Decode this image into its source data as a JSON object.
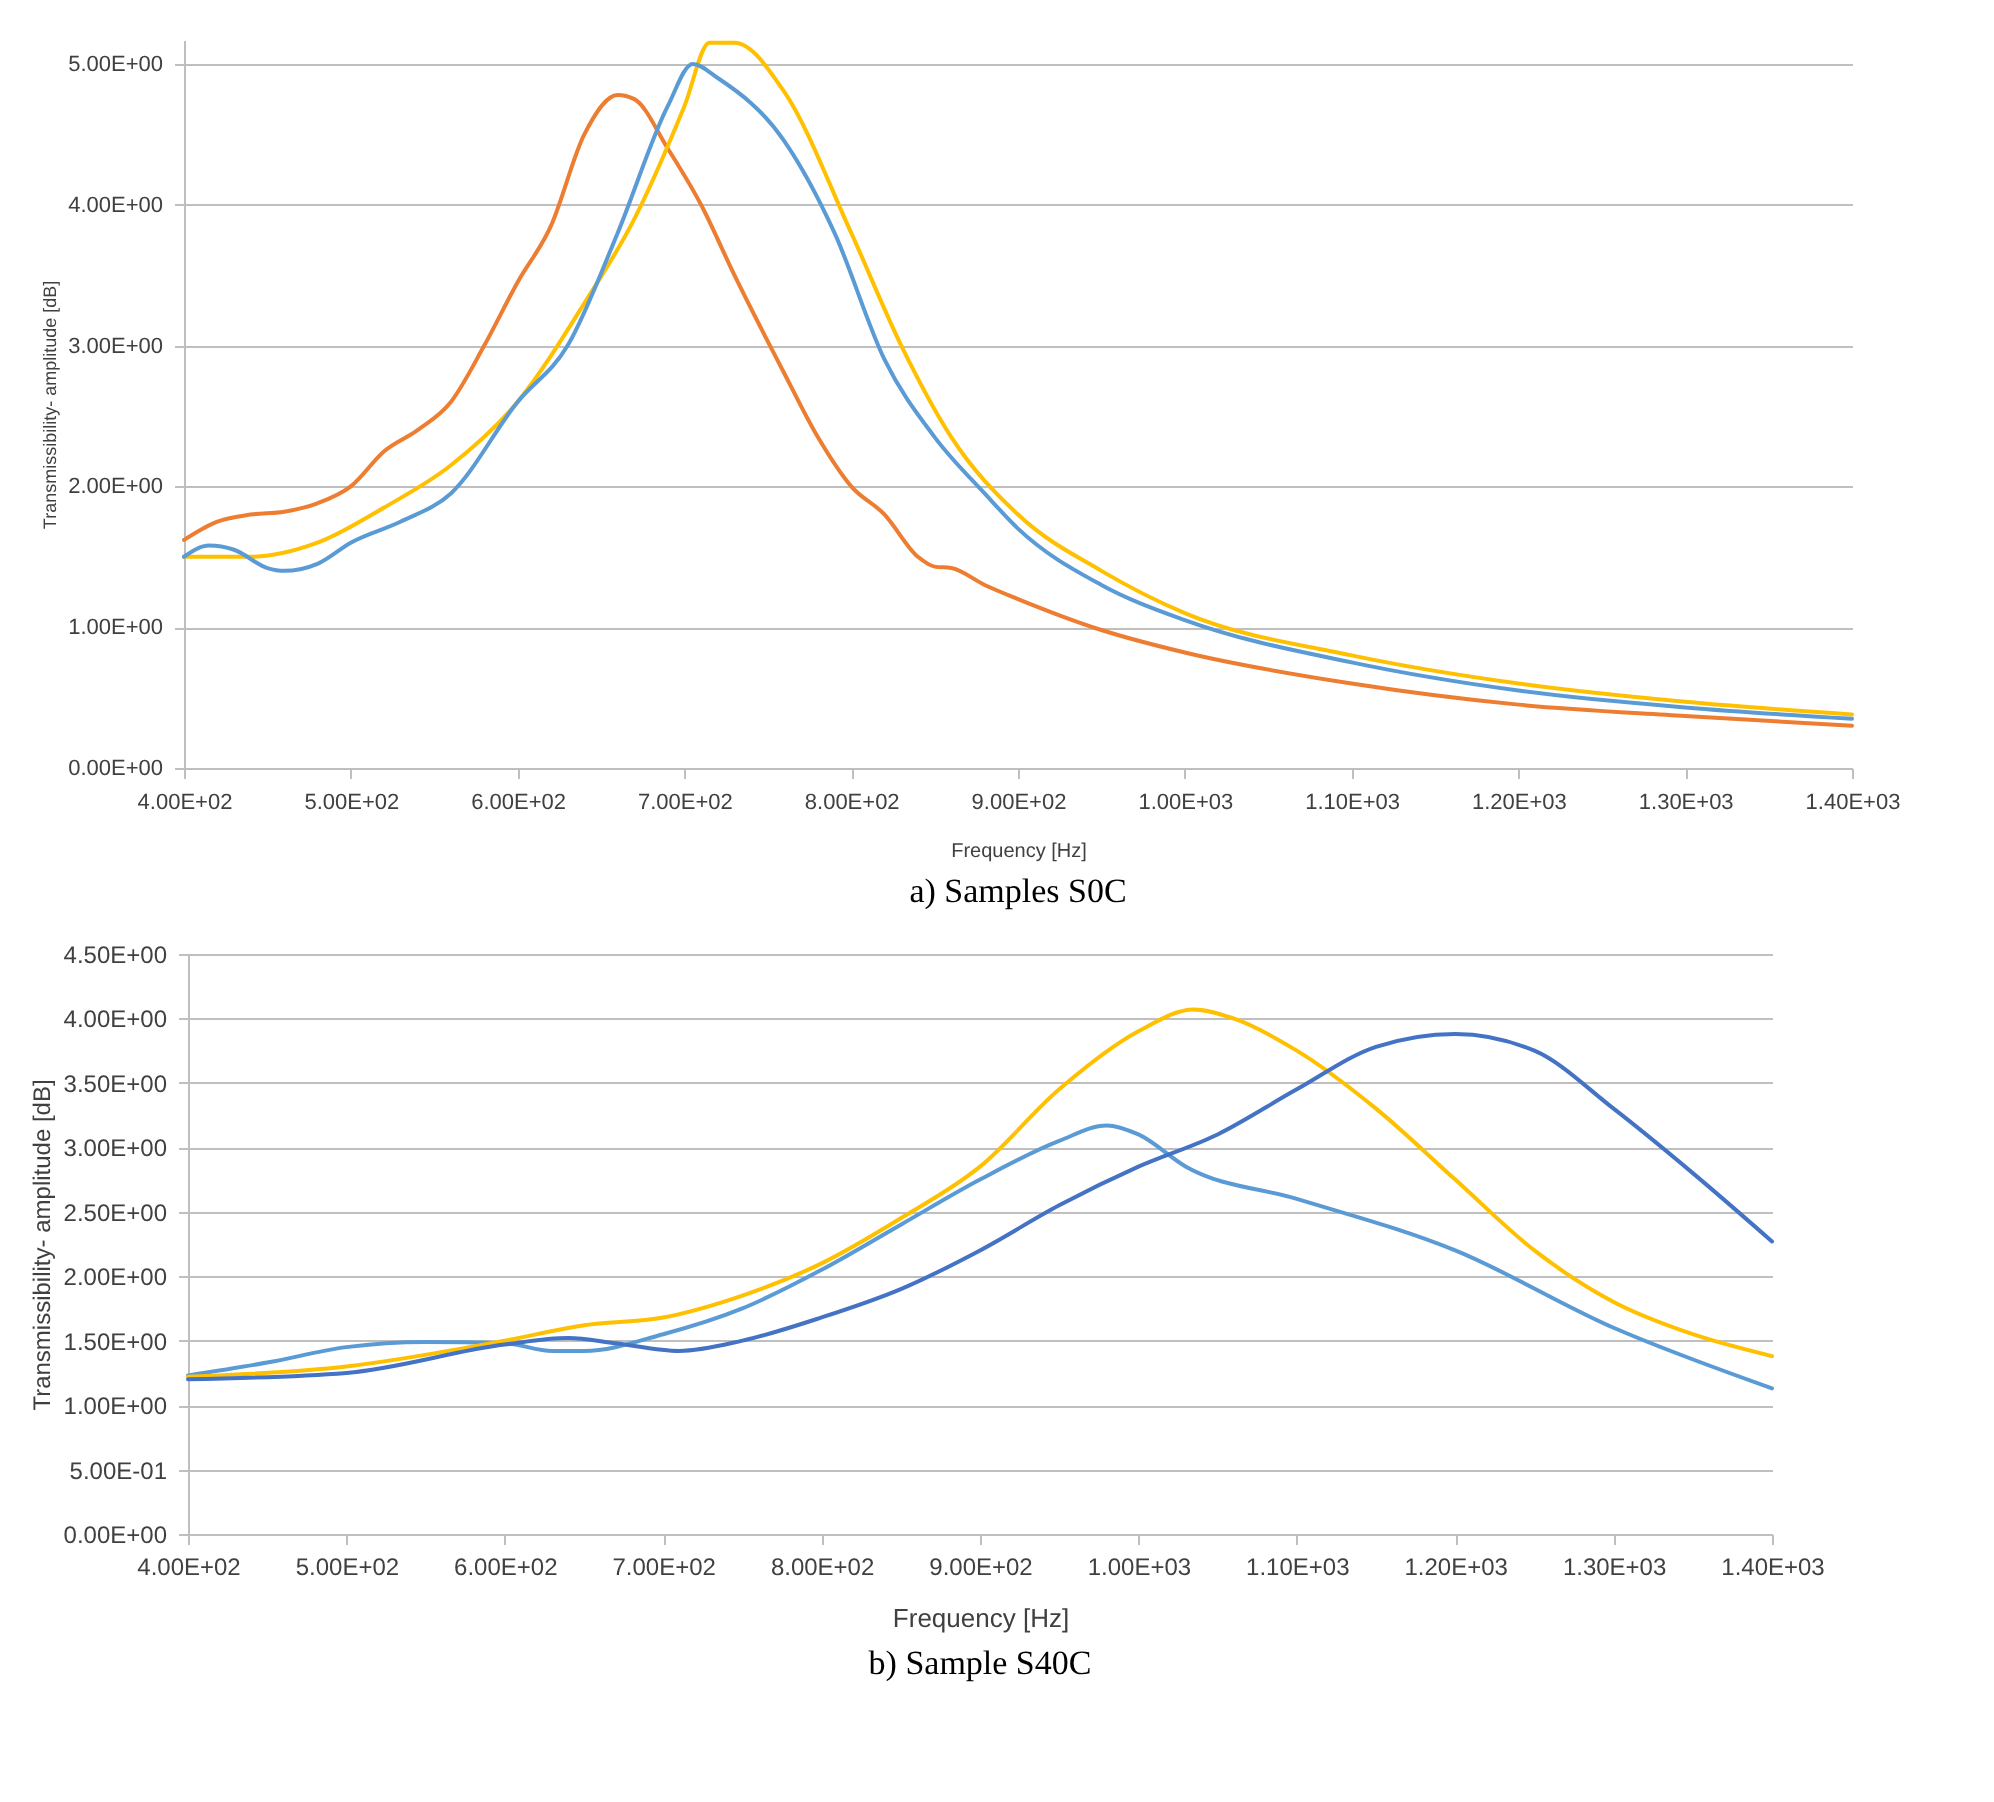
{
  "chart_data": [
    {
      "type": "line",
      "xlabel": "Frequency [Hz]",
      "ylabel": "Transmissibility- amplitude [dB]",
      "grid": "y",
      "xlim": [
        400,
        1400
      ],
      "ylim": [
        0,
        5.17
      ],
      "xticks": [
        {
          "value": 400,
          "label": "4.00E+02"
        },
        {
          "value": 500,
          "label": "5.00E+02"
        },
        {
          "value": 600,
          "label": "6.00E+02"
        },
        {
          "value": 700,
          "label": "7.00E+02"
        },
        {
          "value": 800,
          "label": "8.00E+02"
        },
        {
          "value": 900,
          "label": "9.00E+02"
        },
        {
          "value": 1000,
          "label": "1.00E+03"
        },
        {
          "value": 1100,
          "label": "1.10E+03"
        },
        {
          "value": 1200,
          "label": "1.20E+03"
        },
        {
          "value": 1300,
          "label": "1.30E+03"
        },
        {
          "value": 1400,
          "label": "1.40E+03"
        }
      ],
      "yticks": [
        {
          "value": 0,
          "label": "0.00E+00"
        },
        {
          "value": 1,
          "label": "1.00E+00"
        },
        {
          "value": 2,
          "label": "2.00E+00"
        },
        {
          "value": 3,
          "label": "3.00E+00"
        },
        {
          "value": 4,
          "label": "4.00E+00"
        },
        {
          "value": 5,
          "label": "5.00E+00"
        }
      ],
      "annotations": [
        "a)   Samples S0C"
      ],
      "series": [
        {
          "color": "#ed7d31",
          "x": [
            400,
            420,
            440,
            460,
            480,
            500,
            520,
            540,
            560,
            580,
            600,
            620,
            640,
            660,
            670,
            690,
            710,
            730,
            760,
            780,
            800,
            820,
            840,
            850,
            860,
            880,
            900,
            950,
            1000,
            1100,
            1200,
            1300,
            1400
          ],
          "values": [
            1.62,
            1.75,
            1.8,
            1.82,
            1.88,
            2.0,
            2.25,
            2.4,
            2.6,
            3.0,
            3.45,
            3.85,
            4.5,
            4.78,
            4.75,
            4.4,
            4.0,
            3.5,
            2.8,
            2.35,
            2.0,
            1.8,
            1.5,
            1.43,
            1.42,
            1.3,
            1.2,
            0.98,
            0.82,
            0.6,
            0.45,
            0.37,
            0.3
          ]
        },
        {
          "color": "#ffc000",
          "x": [
            400,
            440,
            480,
            520,
            560,
            600,
            640,
            670,
            700,
            715,
            730,
            760,
            800,
            830,
            860,
            900,
            950,
            1000,
            1100,
            1200,
            1300,
            1400
          ],
          "values": [
            1.5,
            1.5,
            1.6,
            1.85,
            2.15,
            2.6,
            3.3,
            3.9,
            4.7,
            5.15,
            5.15,
            4.8,
            3.8,
            3.0,
            2.35,
            1.8,
            1.4,
            1.1,
            0.8,
            0.6,
            0.47,
            0.38
          ]
        },
        {
          "color": "#5b9bd5",
          "x": [
            400,
            415,
            430,
            450,
            460,
            480,
            500,
            530,
            560,
            600,
            630,
            660,
            690,
            705,
            720,
            760,
            790,
            820,
            850,
            880,
            900,
            950,
            1000,
            1100,
            1200,
            1300,
            1400
          ],
          "values": [
            1.5,
            1.58,
            1.55,
            1.42,
            1.4,
            1.45,
            1.6,
            1.75,
            1.95,
            2.6,
            3.0,
            3.8,
            4.7,
            5.0,
            4.9,
            4.45,
            3.8,
            2.9,
            2.35,
            1.95,
            1.7,
            1.3,
            1.05,
            0.75,
            0.55,
            0.43,
            0.35
          ]
        }
      ]
    },
    {
      "type": "line",
      "xlabel": "Frequency [Hz]",
      "ylabel": "Transmissibility- amplitude [dB]",
      "grid": "y",
      "xlim": [
        400,
        1400
      ],
      "ylim": [
        0,
        4.5
      ],
      "xticks": [
        {
          "value": 400,
          "label": "4.00E+02"
        },
        {
          "value": 500,
          "label": "5.00E+02"
        },
        {
          "value": 600,
          "label": "6.00E+02"
        },
        {
          "value": 700,
          "label": "7.00E+02"
        },
        {
          "value": 800,
          "label": "8.00E+02"
        },
        {
          "value": 900,
          "label": "9.00E+02"
        },
        {
          "value": 1000,
          "label": "1.00E+03"
        },
        {
          "value": 1100,
          "label": "1.10E+03"
        },
        {
          "value": 1200,
          "label": "1.20E+03"
        },
        {
          "value": 1300,
          "label": "1.30E+03"
        },
        {
          "value": 1400,
          "label": "1.40E+03"
        }
      ],
      "yticks": [
        {
          "value": 0,
          "label": "0.00E+00"
        },
        {
          "value": 0.5,
          "label": "5.00E-01"
        },
        {
          "value": 1,
          "label": "1.00E+00"
        },
        {
          "value": 1.5,
          "label": "1.50E+00"
        },
        {
          "value": 2,
          "label": "2.00E+00"
        },
        {
          "value": 2.5,
          "label": "2.50E+00"
        },
        {
          "value": 3,
          "label": "3.00E+00"
        },
        {
          "value": 3.5,
          "label": "3.50E+00"
        },
        {
          "value": 4,
          "label": "4.00E+00"
        },
        {
          "value": 4.5,
          "label": "4.50E+00"
        }
      ],
      "annotations": [
        "b)   Sample S40C"
      ],
      "series": [
        {
          "color": "#5b9bd5",
          "x": [
            400,
            450,
            500,
            550,
            600,
            630,
            650,
            700,
            750,
            800,
            850,
            900,
            950,
            980,
            1000,
            1030,
            1100,
            1200,
            1300,
            1400
          ],
          "values": [
            1.23,
            1.33,
            1.45,
            1.49,
            1.48,
            1.42,
            1.42,
            1.55,
            1.75,
            2.05,
            2.4,
            2.75,
            3.05,
            3.17,
            3.1,
            2.85,
            2.6,
            2.2,
            1.6,
            1.13
          ]
        },
        {
          "color": "#ffc000",
          "x": [
            400,
            500,
            600,
            650,
            700,
            750,
            800,
            850,
            900,
            950,
            1000,
            1035,
            1060,
            1100,
            1150,
            1200,
            1250,
            1300,
            1350,
            1400
          ],
          "values": [
            1.22,
            1.3,
            1.5,
            1.62,
            1.68,
            1.85,
            2.1,
            2.45,
            2.85,
            3.45,
            3.9,
            4.07,
            4.0,
            3.75,
            3.3,
            2.75,
            2.2,
            1.8,
            1.55,
            1.38
          ]
        },
        {
          "color": "#4472c4",
          "x": [
            400,
            500,
            600,
            640,
            670,
            710,
            750,
            800,
            850,
            900,
            950,
            1000,
            1050,
            1100,
            1150,
            1200,
            1250,
            1300,
            1350,
            1400
          ],
          "values": [
            1.2,
            1.25,
            1.47,
            1.52,
            1.48,
            1.42,
            1.5,
            1.68,
            1.9,
            2.2,
            2.55,
            2.85,
            3.1,
            3.45,
            3.78,
            3.88,
            3.75,
            3.3,
            2.8,
            2.27
          ]
        }
      ]
    }
  ]
}
